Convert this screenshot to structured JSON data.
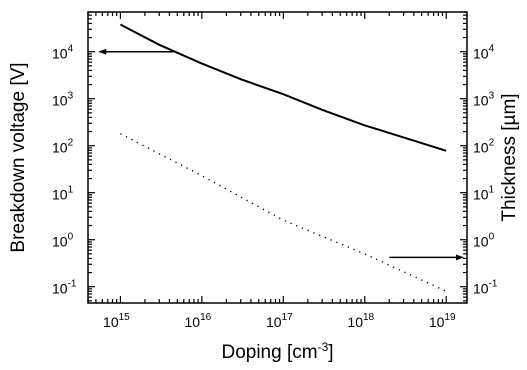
{
  "chart_data": {
    "type": "line",
    "xlabel": {
      "main": "Doping [cm",
      "sup": "-3",
      "tail": "]"
    },
    "ylabel_left": "Breakdown voltage [V]",
    "ylabel_right": "Thickness  [µm]",
    "x_scale": "log",
    "y_scale": "log",
    "xlim": [
      400000000000000.0,
      1.8e+19
    ],
    "ylim": [
      0.045,
      70000
    ],
    "x_ticks": [
      {
        "base": "10",
        "exp": "15",
        "value": 1000000000000000.0
      },
      {
        "base": "10",
        "exp": "16",
        "value": 1e+16
      },
      {
        "base": "10",
        "exp": "17",
        "value": 1e+17
      },
      {
        "base": "10",
        "exp": "18",
        "value": 1e+18
      },
      {
        "base": "10",
        "exp": "19",
        "value": 1e+19
      }
    ],
    "y_ticks_left": [
      {
        "base": "10",
        "exp": "-1",
        "value": 0.1
      },
      {
        "base": "10",
        "exp": "0",
        "value": 1
      },
      {
        "base": "10",
        "exp": "1",
        "value": 10
      },
      {
        "base": "10",
        "exp": "2",
        "value": 100
      },
      {
        "base": "10",
        "exp": "3",
        "value": 1000
      },
      {
        "base": "10",
        "exp": "4",
        "value": 10000
      }
    ],
    "y_ticks_right": [
      {
        "base": "10",
        "exp": "-1",
        "value": 0.1
      },
      {
        "base": "10",
        "exp": "0",
        "value": 1
      },
      {
        "base": "10",
        "exp": "1",
        "value": 10
      },
      {
        "base": "10",
        "exp": "2",
        "value": 100
      },
      {
        "base": "10",
        "exp": "3",
        "value": 1000
      },
      {
        "base": "10",
        "exp": "4",
        "value": 10000
      }
    ],
    "series": [
      {
        "axis": "left",
        "style": "solid",
        "color": "#000000",
        "x": [
          1000000000000000.0,
          3000000000000000.0,
          1e+16,
          3e+16,
          1e+17,
          3e+17,
          1e+18,
          3e+18,
          1e+19
        ],
        "y": [
          38000,
          14000,
          5600,
          2600,
          1250,
          580,
          270,
          150,
          78
        ]
      },
      {
        "axis": "right",
        "style": "dotted",
        "color": "#000000",
        "x": [
          1000000000000000.0,
          1e+16,
          1e+17,
          1e+18,
          1e+19
        ],
        "y": [
          180,
          23,
          2.6,
          0.5,
          0.08
        ]
      }
    ],
    "annotations": [
      {
        "type": "arrow",
        "direction": "left",
        "points_to": "left axis",
        "from_x": 4500000000000000.0,
        "to_x": 550000000000000.0,
        "y": 10000
      },
      {
        "type": "arrow",
        "direction": "right",
        "points_to": "right axis",
        "from_x": 2e+18,
        "to_x": 1.6e+19,
        "y": 0.42
      }
    ]
  }
}
